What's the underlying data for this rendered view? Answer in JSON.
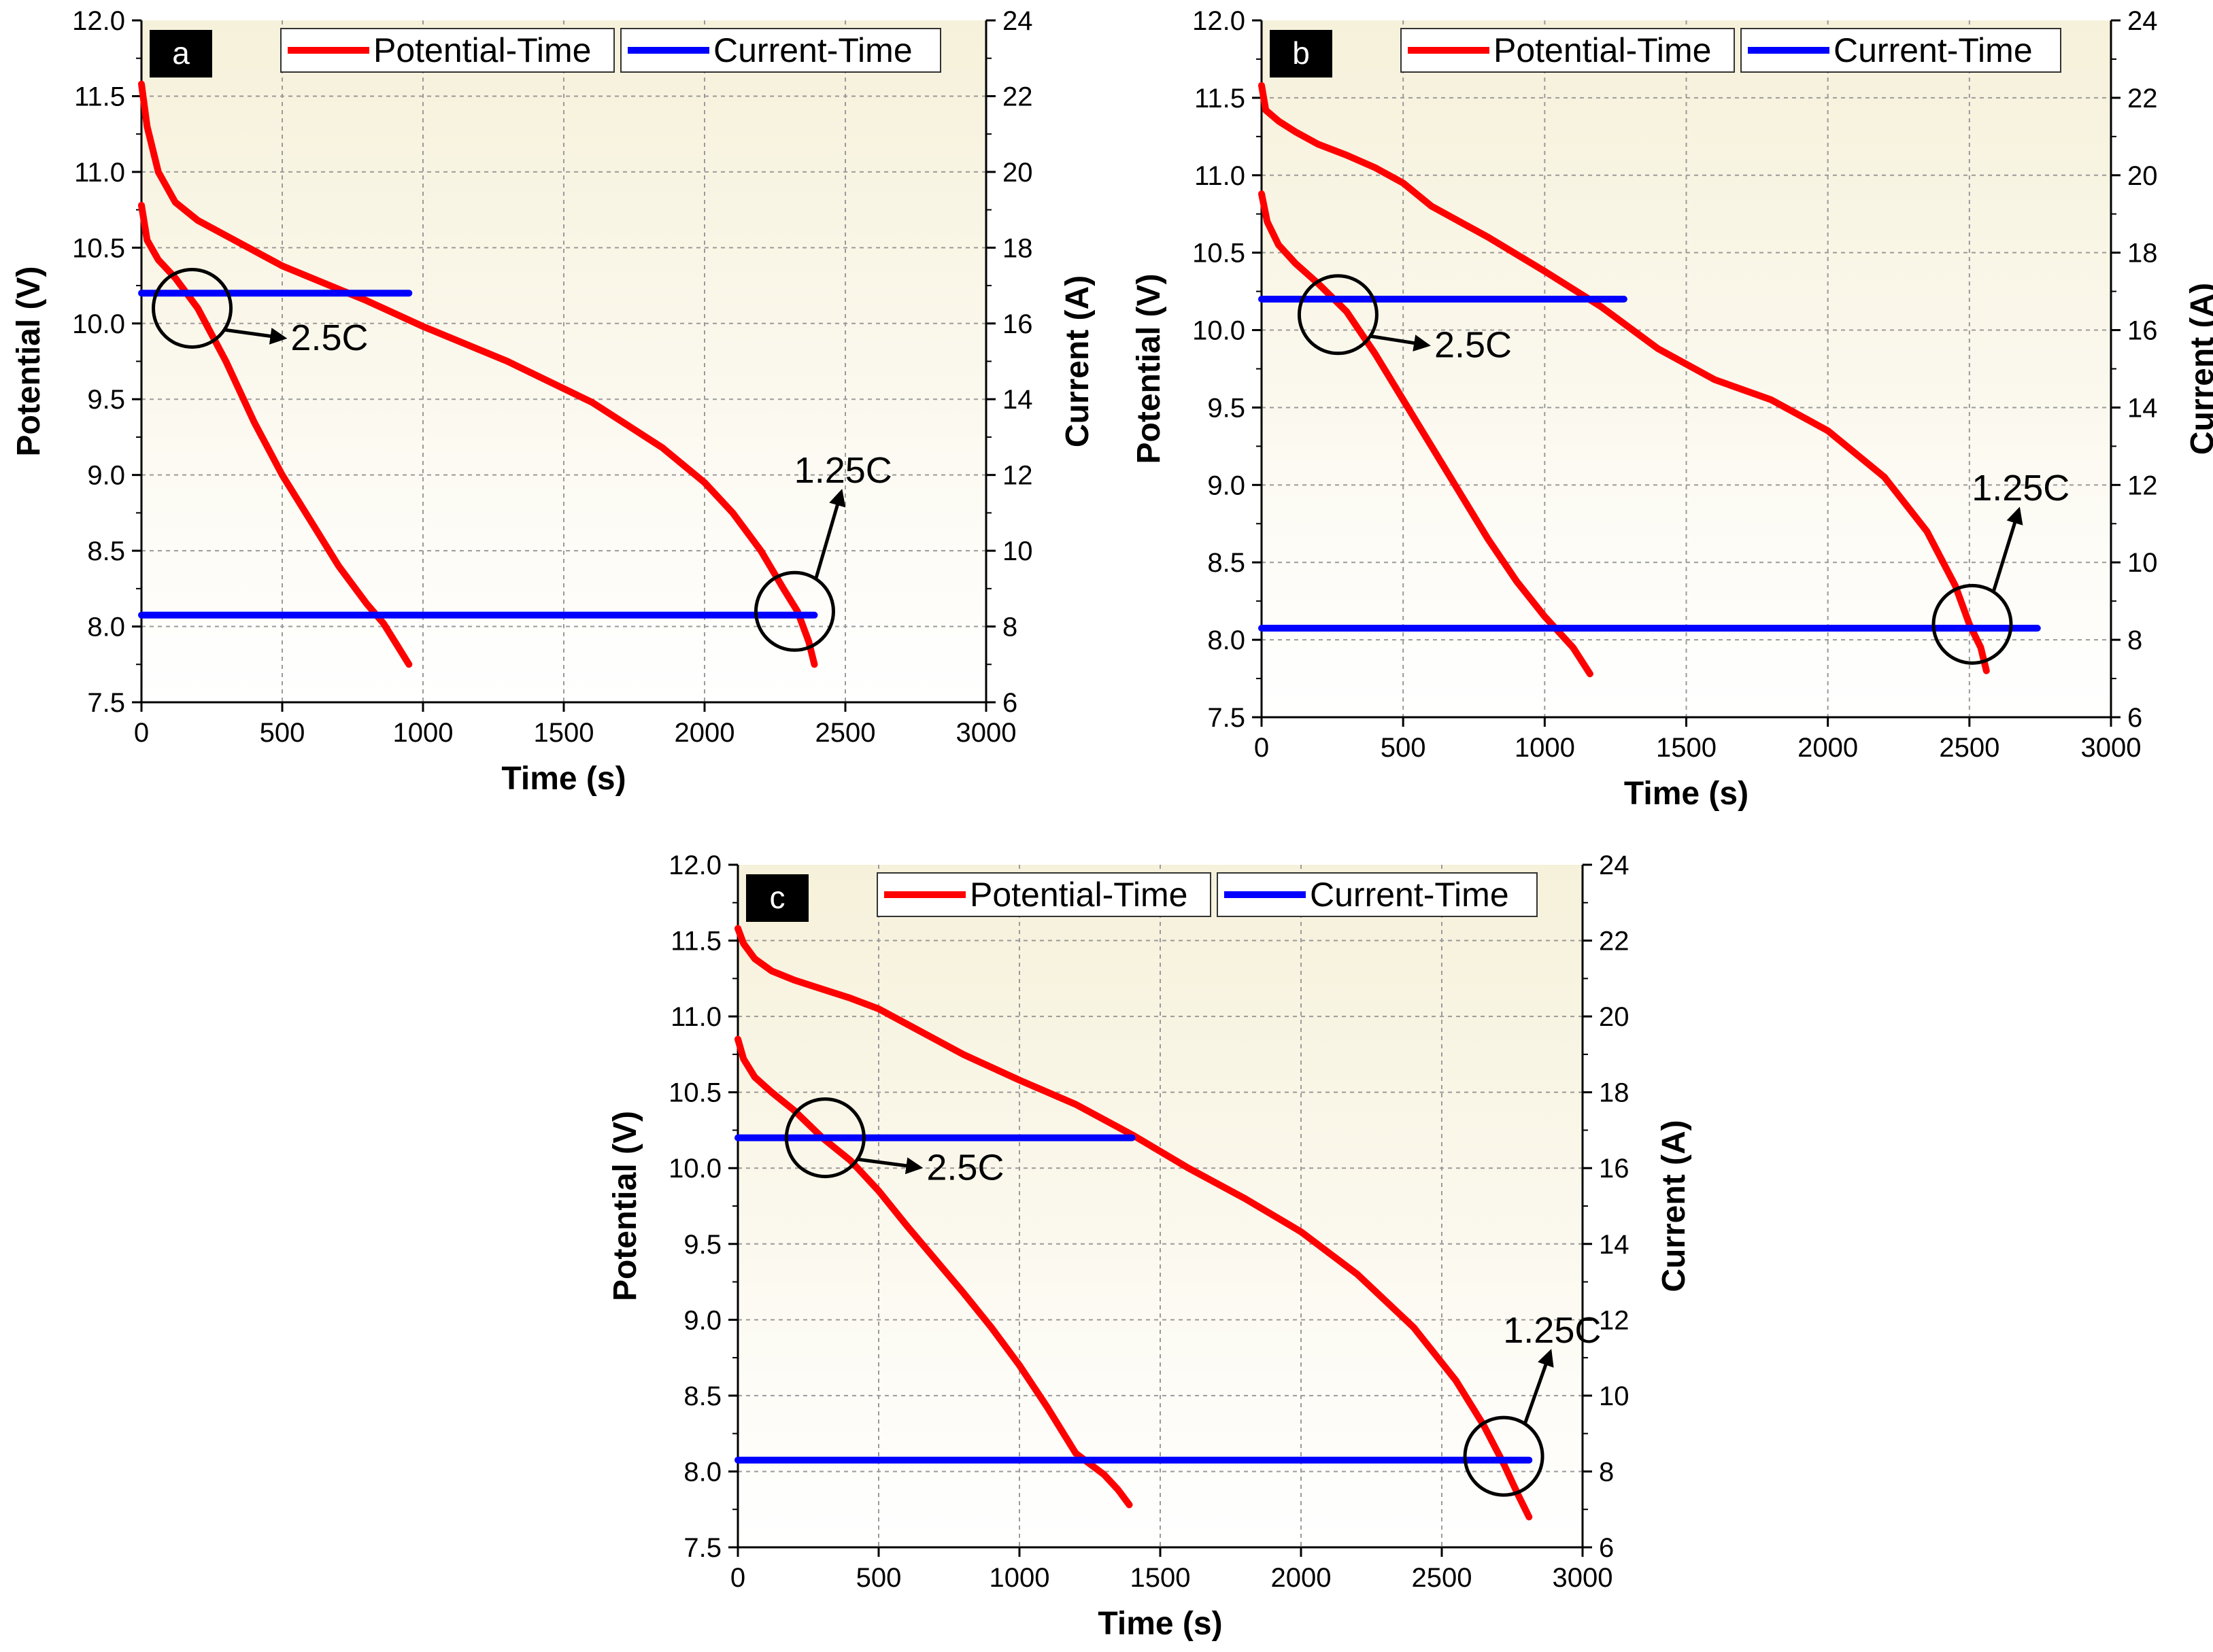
{
  "chart_data": [
    {
      "type": "line",
      "panel_label": "a",
      "xlabel": "Time (s)",
      "ylabel": "Potential (V)",
      "y2label": "Current (A)",
      "xlim": [
        0,
        3000
      ],
      "ylim": [
        7.5,
        12.0
      ],
      "y2lim": [
        6,
        24
      ],
      "x_ticks": [
        "0",
        "500",
        "1000",
        "1500",
        "2000",
        "2500",
        "3000"
      ],
      "y_ticks": [
        "7.5",
        "8.0",
        "8.5",
        "9.0",
        "9.5",
        "10.0",
        "10.5",
        "11.0",
        "11.5",
        "12.0"
      ],
      "y2_ticks": [
        "6",
        "8",
        "10",
        "12",
        "14",
        "16",
        "18",
        "20",
        "22",
        "24"
      ],
      "grid": true,
      "legend_position": "top",
      "legend": [
        {
          "label": "Potential-Time",
          "color": "#ff0000"
        },
        {
          "label": "Current-Time",
          "color": "#0000ff"
        }
      ],
      "series": [
        {
          "group": "potential",
          "color": "#ff0000",
          "x": [
            0,
            20,
            60,
            120,
            200,
            300,
            400,
            500,
            600,
            700,
            800,
            860,
            900,
            950
          ],
          "y": [
            10.78,
            10.55,
            10.42,
            10.3,
            10.1,
            9.75,
            9.35,
            9.0,
            8.7,
            8.4,
            8.15,
            8.02,
            7.9,
            7.75
          ]
        },
        {
          "group": "potential",
          "color": "#ff0000",
          "x": [
            0,
            20,
            60,
            120,
            200,
            300,
            500,
            800,
            1000,
            1300,
            1600,
            1850,
            2000,
            2100,
            2200,
            2280,
            2330,
            2370,
            2390
          ],
          "y": [
            11.58,
            11.3,
            11.0,
            10.8,
            10.68,
            10.58,
            10.38,
            10.15,
            9.98,
            9.75,
            9.48,
            9.18,
            8.95,
            8.75,
            8.5,
            8.25,
            8.1,
            7.9,
            7.75
          ]
        },
        {
          "group": "current",
          "axis": "right",
          "color": "#0000ff",
          "x": [
            0,
            950
          ],
          "y": [
            16.8,
            16.8
          ]
        },
        {
          "group": "current",
          "axis": "right",
          "color": "#0000ff",
          "x": [
            0,
            2390
          ],
          "y": [
            8.3,
            8.3
          ]
        }
      ],
      "annotations": [
        {
          "text": "2.5C",
          "circle_x": 180,
          "circle_y": 10.1,
          "label_x": 530,
          "label_y": 9.85
        },
        {
          "text": "1.25C",
          "circle_x": 2320,
          "circle_y": 8.1,
          "label_x": 2510,
          "label_y": 8.95
        }
      ]
    },
    {
      "type": "line",
      "panel_label": "b",
      "xlabel": "Time (s)",
      "ylabel": "Potential (V)",
      "y2label": "Current (A)",
      "xlim": [
        0,
        3000
      ],
      "ylim": [
        7.5,
        12.0
      ],
      "y2lim": [
        6,
        24
      ],
      "x_ticks": [
        "0",
        "500",
        "1000",
        "1500",
        "2000",
        "2500",
        "3000"
      ],
      "y_ticks": [
        "7.5",
        "8.0",
        "8.5",
        "9.0",
        "9.5",
        "10.0",
        "10.5",
        "11.0",
        "11.5",
        "12.0"
      ],
      "y2_ticks": [
        "6",
        "8",
        "10",
        "12",
        "14",
        "16",
        "18",
        "20",
        "22",
        "24"
      ],
      "grid": true,
      "legend_position": "top",
      "legend": [
        {
          "label": "Potential-Time",
          "color": "#ff0000"
        },
        {
          "label": "Current-Time",
          "color": "#0000ff"
        }
      ],
      "series": [
        {
          "group": "potential",
          "color": "#ff0000",
          "x": [
            0,
            20,
            60,
            120,
            200,
            300,
            400,
            500,
            600,
            700,
            800,
            900,
            1000,
            1050,
            1100,
            1160
          ],
          "y": [
            10.88,
            10.7,
            10.55,
            10.43,
            10.3,
            10.12,
            9.85,
            9.55,
            9.25,
            8.95,
            8.65,
            8.38,
            8.15,
            8.05,
            7.95,
            7.78
          ]
        },
        {
          "group": "potential",
          "color": "#ff0000",
          "x": [
            0,
            15,
            60,
            120,
            200,
            300,
            400,
            500,
            600,
            800,
            1000,
            1200,
            1400,
            1600,
            1800,
            2000,
            2200,
            2350,
            2450,
            2500,
            2540,
            2560
          ],
          "y": [
            11.58,
            11.42,
            11.35,
            11.28,
            11.2,
            11.13,
            11.05,
            10.95,
            10.8,
            10.6,
            10.38,
            10.15,
            9.88,
            9.68,
            9.55,
            9.35,
            9.05,
            8.7,
            8.35,
            8.1,
            7.95,
            7.8
          ]
        },
        {
          "group": "current",
          "axis": "right",
          "color": "#0000ff",
          "x": [
            0,
            1280
          ],
          "y": [
            16.8,
            16.8
          ]
        },
        {
          "group": "current",
          "axis": "right",
          "color": "#0000ff",
          "x": [
            0,
            2740
          ],
          "y": [
            8.3,
            8.3
          ]
        }
      ],
      "annotations": [
        {
          "text": "2.5C",
          "circle_x": 270,
          "circle_y": 10.1,
          "label_x": 610,
          "label_y": 9.85
        },
        {
          "text": "1.25C",
          "circle_x": 2510,
          "circle_y": 8.1,
          "label_x": 2640,
          "label_y": 8.9
        }
      ]
    },
    {
      "type": "line",
      "panel_label": "c",
      "xlabel": "Time (s)",
      "ylabel": "Potential (V)",
      "y2label": "Current (A)",
      "xlim": [
        0,
        3000
      ],
      "ylim": [
        7.5,
        12.0
      ],
      "y2lim": [
        6,
        24
      ],
      "x_ticks": [
        "0",
        "500",
        "1000",
        "1500",
        "2000",
        "2500",
        "3000"
      ],
      "y_ticks": [
        "7.5",
        "8.0",
        "8.5",
        "9.0",
        "9.5",
        "10.0",
        "10.5",
        "11.0",
        "11.5",
        "12.0"
      ],
      "y2_ticks": [
        "6",
        "8",
        "10",
        "12",
        "14",
        "16",
        "18",
        "20",
        "22",
        "24"
      ],
      "grid": true,
      "legend_position": "top",
      "legend": [
        {
          "label": "Potential-Time",
          "color": "#ff0000"
        },
        {
          "label": "Current-Time",
          "color": "#0000ff"
        }
      ],
      "series": [
        {
          "group": "potential",
          "color": "#ff0000",
          "x": [
            0,
            20,
            60,
            120,
            200,
            300,
            400,
            500,
            600,
            700,
            800,
            900,
            1000,
            1100,
            1200,
            1300,
            1350,
            1390
          ],
          "y": [
            10.85,
            10.72,
            10.6,
            10.5,
            10.38,
            10.2,
            10.05,
            9.85,
            9.62,
            9.4,
            9.18,
            8.95,
            8.7,
            8.42,
            8.12,
            7.98,
            7.88,
            7.78
          ]
        },
        {
          "group": "potential",
          "color": "#ff0000",
          "x": [
            0,
            20,
            60,
            120,
            200,
            300,
            400,
            500,
            600,
            800,
            1000,
            1200,
            1400,
            1600,
            1800,
            2000,
            2200,
            2400,
            2550,
            2650,
            2720,
            2770,
            2810
          ],
          "y": [
            11.58,
            11.48,
            11.38,
            11.3,
            11.24,
            11.18,
            11.12,
            11.05,
            10.95,
            10.75,
            10.58,
            10.42,
            10.22,
            10.0,
            9.8,
            9.58,
            9.3,
            8.95,
            8.6,
            8.3,
            8.05,
            7.85,
            7.7
          ]
        },
        {
          "group": "current",
          "axis": "right",
          "color": "#0000ff",
          "x": [
            0,
            1400
          ],
          "y": [
            16.8,
            16.8
          ]
        },
        {
          "group": "current",
          "axis": "right",
          "color": "#0000ff",
          "x": [
            0,
            2810
          ],
          "y": [
            8.3,
            8.3
          ]
        }
      ],
      "annotations": [
        {
          "text": "2.5C",
          "circle_x": 310,
          "circle_y": 10.2,
          "label_x": 670,
          "label_y": 9.95
        },
        {
          "text": "1.25C",
          "circle_x": 2720,
          "circle_y": 8.1,
          "label_x": 2760,
          "label_y": 8.85
        }
      ]
    }
  ]
}
